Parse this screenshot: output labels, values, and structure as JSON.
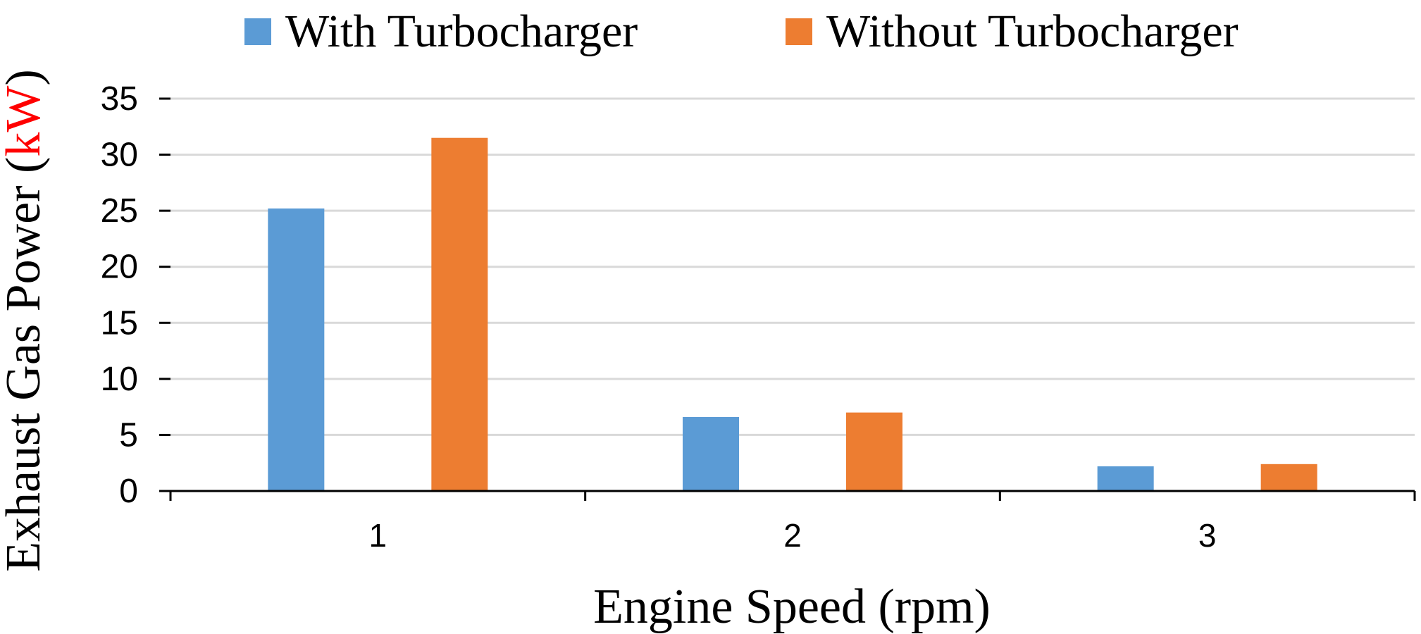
{
  "chart_data": {
    "type": "bar",
    "categories": [
      "1",
      "2",
      "3"
    ],
    "series": [
      {
        "name": "With Turbocharger",
        "color": "#5B9BD5",
        "values": [
          25.2,
          6.6,
          2.2
        ]
      },
      {
        "name": "Without Turbocharger",
        "color": "#ED7D31",
        "values": [
          31.5,
          7.0,
          2.4
        ]
      }
    ],
    "xlabel": "Engine Speed (rpm)",
    "ylabel": {
      "prefix": "Exhaust Gas Power (",
      "unit": "kW",
      "suffix": ")"
    },
    "unit_color": "#FF0000",
    "ylim": [
      0,
      35
    ],
    "yticks": [
      "0",
      "5",
      "10",
      "15",
      "20",
      "25",
      "30",
      "35"
    ],
    "grid": true,
    "gridline_color": "#D9D9D9",
    "legend_position": "top-center"
  }
}
